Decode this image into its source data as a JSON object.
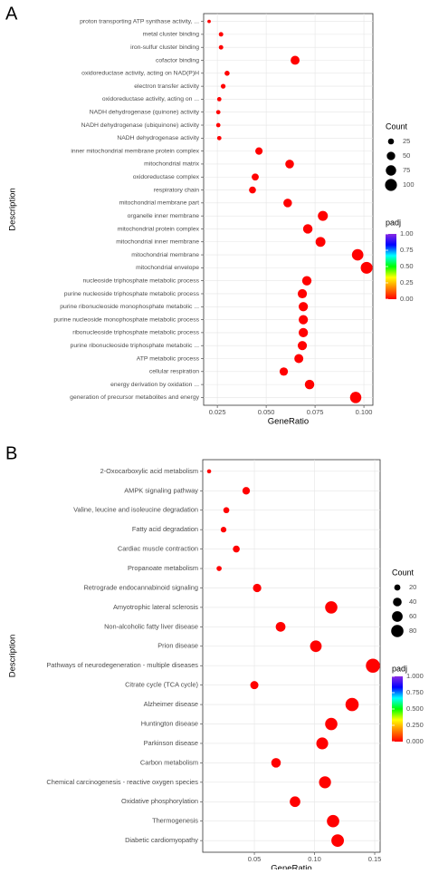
{
  "chart_data": [
    {
      "type": "dotplot",
      "label": "A",
      "xlabel": "GeneRatio",
      "ylabel": "Description",
      "categories": [
        "proton transporting ATP synthase activity, ...",
        "metal cluster binding",
        "iron-sulfur cluster binding",
        "cofactor binding",
        "oxidoreductase activity, acting on NAD(P)H",
        "electron transfer activity",
        "oxidoreductase activity, acting on ...",
        "NADH dehydrogenase (quinone) activity",
        "NADH dehydrogenase (ubiquinone) activity",
        "NADH dehydrogenase activity",
        "inner mitochondrial membrane protein complex",
        "mitochondrial matrix",
        "oxidoreductase complex",
        "respiratory chain",
        "mitochondrial membrane part",
        "organelle inner membrane",
        "mitochondrial protein complex",
        "mitochondrial inner membrane",
        "mitochondrial membrane",
        "mitochondrial envelope",
        "nucleoside triphosphate metabolic process",
        "purine nucleoside triphosphate metabolic process",
        "purine ribonucleoside monophosphate metabolic ...",
        "purine nucleoside monophosphate metabolic process",
        "ribonucleoside triphosphate metabolic process",
        "purine ribonucleoside triphosphate metabolic ...",
        "ATP metabolic process",
        "cellular respiration",
        "energy derivation by oxidation ...",
        "generation of precursor metabolites and energy"
      ],
      "values": [
        0.0208,
        0.0269,
        0.0269,
        0.0648,
        0.03,
        0.028,
        0.026,
        0.0255,
        0.0255,
        0.026,
        0.0463,
        0.062,
        0.0444,
        0.043,
        0.061,
        0.079,
        0.0713,
        0.0778,
        0.0968,
        0.1014,
        0.0708,
        0.0685,
        0.069,
        0.069,
        0.069,
        0.0685,
        0.0667,
        0.059,
        0.0722,
        0.0958
      ],
      "size": [
        8,
        14,
        14,
        56,
        18,
        16,
        13,
        13,
        13,
        13,
        38,
        53,
        35,
        34,
        52,
        70,
        62,
        68,
        92,
        98,
        62,
        59,
        60,
        60,
        60,
        59,
        57,
        49,
        63,
        90
      ],
      "padj": [
        0.001,
        0.001,
        0.001,
        0.001,
        0.001,
        0.001,
        0.001,
        0.001,
        0.001,
        0.001,
        0.001,
        0.001,
        0.001,
        0.001,
        0.001,
        0.001,
        0.001,
        0.001,
        0.001,
        0.001,
        0.001,
        0.001,
        0.001,
        0.001,
        0.001,
        0.001,
        0.001,
        0.001,
        0.001,
        0.001
      ],
      "xlim": [
        0.018,
        0.1046
      ],
      "xticks": [
        0.025,
        {
          "value": 0.05,
          "label": "0.050"
        },
        0.075,
        {
          "value": 0.1,
          "label": "0.100"
        }
      ],
      "size_title": "Count",
      "size_ticks": [
        25,
        50,
        75,
        100
      ],
      "color_title": "padj",
      "clim": [
        0,
        1
      ],
      "cticks": [
        {
          "value": 1,
          "label": "1.00"
        },
        0.75,
        {
          "value": 0.5,
          "label": "0.50"
        },
        0.25,
        {
          "value": 0,
          "label": "0.00"
        }
      ],
      "colorscale": [
        "#ff0000",
        "#ff8000",
        "#ffff00",
        "#00ff00",
        "#00ffff",
        "#0000ff",
        "#8a2be2"
      ],
      "grid": true
    },
    {
      "type": "dotplot",
      "label": "B",
      "xlabel": "GeneRatio",
      "ylabel": "Description",
      "categories": [
        "2-Oxocarboxylic acid metabolism",
        "AMPK signaling pathway",
        "Valine, leucine and isoleucine degradation",
        "Fatty acid degradation",
        "Cardiac muscle contraction",
        "Propanoate metabolism",
        "Retrograde endocannabinoid signaling",
        "Amyotrophic lateral sclerosis",
        "Non-alcoholic fatty liver disease",
        "Prion disease",
        "Pathways of neurodegeneration - multiple diseases",
        "Citrate cycle (TCA cycle)",
        "Alzheimer disease",
        "Huntington disease",
        "Parkinson disease",
        "Carbon metabolism",
        "Chemical carcinogenesis - reactive oxygen species",
        "Oxidative phosphorylation",
        "Thermogenesis",
        "Diabetic cardiomyopathy"
      ],
      "values": [
        0.0124,
        0.0432,
        0.0267,
        0.0244,
        0.035,
        0.0207,
        0.0523,
        0.1139,
        0.0718,
        0.1011,
        0.1485,
        0.05,
        0.1312,
        0.1139,
        0.1064,
        0.068,
        0.1087,
        0.0838,
        0.1154,
        0.1192
      ],
      "size": [
        9,
        30,
        19,
        17,
        25,
        14,
        37,
        80,
        50,
        71,
        104,
        35,
        92,
        80,
        74,
        48,
        76,
        59,
        81,
        83
      ],
      "padj": [
        0.001,
        0.001,
        0.001,
        0.001,
        0.001,
        0.001,
        0.001,
        0.001,
        0.001,
        0.001,
        0.001,
        0.001,
        0.001,
        0.001,
        0.001,
        0.001,
        0.001,
        0.001,
        0.001,
        0.001
      ],
      "xlim": [
        0.0071,
        0.1545
      ],
      "xticks": [
        0.05,
        {
          "value": 0.1,
          "label": "0.10"
        },
        0.15
      ],
      "size_title": "Count",
      "size_ticks": [
        20,
        40,
        60,
        80
      ],
      "color_title": "padj",
      "clim": [
        0,
        1
      ],
      "cticks": [
        {
          "value": 1,
          "label": "1.000"
        },
        {
          "value": 0.75,
          "label": "0.750"
        },
        {
          "value": 0.5,
          "label": "0.500"
        },
        {
          "value": 0.25,
          "label": "0.250"
        },
        {
          "value": 0,
          "label": "0.000"
        }
      ],
      "colorscale": [
        "#ff0000",
        "#ff8000",
        "#ffff00",
        "#00ff00",
        "#00ffff",
        "#0000ff",
        "#8a2be2"
      ],
      "grid": true
    }
  ]
}
